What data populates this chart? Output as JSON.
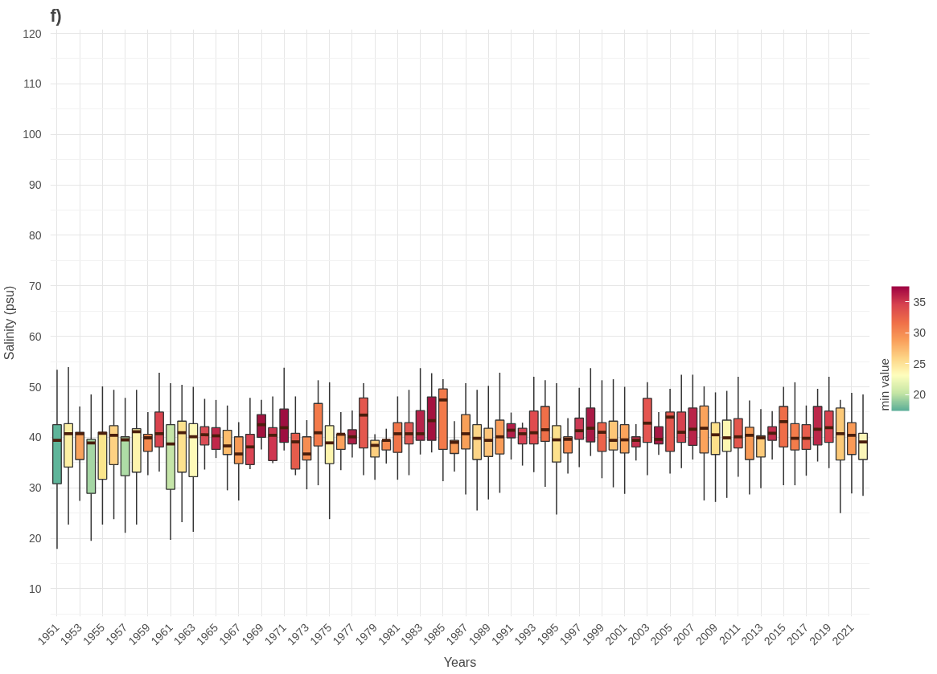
{
  "chart_data": {
    "type": "box",
    "title": "f)",
    "xlabel": "Years",
    "ylabel": "Salinity (psu)",
    "clabel": "min value",
    "categories": [
      "1951",
      null,
      "1953",
      null,
      "1955",
      null,
      "1957",
      null,
      "1959",
      null,
      "1961",
      null,
      "1963",
      null,
      "1965",
      null,
      "1967",
      null,
      "1969",
      null,
      "1971",
      null,
      "1973",
      null,
      "1975",
      null,
      "1977",
      null,
      "1979",
      null,
      "1981",
      null,
      "1983",
      null,
      "1985",
      null,
      "1987",
      null,
      "1989",
      null,
      "1991",
      null,
      "1993",
      null,
      "1995",
      null,
      "1997",
      null,
      "1999",
      null,
      "2001",
      null,
      "2003",
      null,
      "2005",
      null,
      "2007",
      null,
      "2009",
      null,
      "2011",
      null,
      "2013",
      null,
      "2015",
      null,
      "2017",
      null,
      "2019",
      null,
      "2021",
      null
    ],
    "ylim": [
      4.5,
      120.8
    ],
    "yticks": [
      10,
      20,
      30,
      40,
      50,
      60,
      70,
      80,
      90,
      100,
      110,
      120
    ],
    "grid": true,
    "clim": [
      17.4,
      37.5
    ],
    "cticks": [
      20,
      25,
      30,
      35
    ],
    "boxes": [
      {
        "low": 17.9,
        "q1": 30.8,
        "median": 39.4,
        "q3": 42.5,
        "high": 53.4
      },
      {
        "low": 22.7,
        "q1": 34.1,
        "median": 40.7,
        "q3": 42.7,
        "high": 53.9
      },
      {
        "low": 27.4,
        "q1": 35.6,
        "median": 40.7,
        "q3": 41.0,
        "high": 46.1
      },
      {
        "low": 19.5,
        "q1": 28.9,
        "median": 38.9,
        "q3": 39.6,
        "high": 48.5
      },
      {
        "low": 22.7,
        "q1": 31.7,
        "median": 40.8,
        "q3": 41.0,
        "high": 50.1
      },
      {
        "low": 23.8,
        "q1": 34.6,
        "median": 40.4,
        "q3": 42.3,
        "high": 49.4
      },
      {
        "low": 21.1,
        "q1": 32.4,
        "median": 39.5,
        "q3": 40.1,
        "high": 47.8
      },
      {
        "low": 22.7,
        "q1": 33.1,
        "median": 41.1,
        "q3": 41.7,
        "high": 49.4
      },
      {
        "low": 32.5,
        "q1": 37.2,
        "median": 39.9,
        "q3": 40.6,
        "high": 45.0
      },
      {
        "low": 33.2,
        "q1": 38.1,
        "median": 40.7,
        "q3": 45.0,
        "high": 52.8
      },
      {
        "low": 19.7,
        "q1": 29.7,
        "median": 38.7,
        "q3": 42.5,
        "high": 50.7
      },
      {
        "low": 23.2,
        "q1": 33.1,
        "median": 40.9,
        "q3": 43.2,
        "high": 50.4
      },
      {
        "low": 21.3,
        "q1": 32.2,
        "median": 40.1,
        "q3": 42.7,
        "high": 50.0
      },
      {
        "low": 33.6,
        "q1": 38.5,
        "median": 40.5,
        "q3": 42.1,
        "high": 47.6
      },
      {
        "low": 35.9,
        "q1": 37.6,
        "median": 40.3,
        "q3": 41.9,
        "high": 47.4
      },
      {
        "low": 29.5,
        "q1": 36.6,
        "median": 38.3,
        "q3": 41.4,
        "high": 46.3
      },
      {
        "low": 27.5,
        "q1": 34.8,
        "median": 36.7,
        "q3": 40.1,
        "high": 43.0
      },
      {
        "low": 33.7,
        "q1": 34.6,
        "median": 38.1,
        "q3": 40.6,
        "high": 47.8
      },
      {
        "low": 37.6,
        "q1": 40.0,
        "median": 42.5,
        "q3": 44.5,
        "high": 47.4
      },
      {
        "low": 34.9,
        "q1": 35.4,
        "median": 40.4,
        "q3": 41.9,
        "high": 48.1
      },
      {
        "low": 37.4,
        "q1": 39.0,
        "median": 41.9,
        "q3": 45.6,
        "high": 53.8
      },
      {
        "low": 32.5,
        "q1": 33.7,
        "median": 39.1,
        "q3": 40.8,
        "high": 48.1
      },
      {
        "low": 29.7,
        "q1": 35.5,
        "median": 36.7,
        "q3": 40.1,
        "high": 43.4
      },
      {
        "low": 30.5,
        "q1": 38.3,
        "median": 40.9,
        "q3": 46.7,
        "high": 51.3
      },
      {
        "low": 23.8,
        "q1": 34.8,
        "median": 38.9,
        "q3": 42.3,
        "high": 50.9
      },
      {
        "low": 33.5,
        "q1": 37.6,
        "median": 40.6,
        "q3": 40.6,
        "high": 45.0
      },
      {
        "low": 36.0,
        "q1": 38.7,
        "median": 40.1,
        "q3": 41.5,
        "high": 45.3
      },
      {
        "low": 32.5,
        "q1": 37.9,
        "median": 44.4,
        "q3": 47.8,
        "high": 50.7
      },
      {
        "low": 31.6,
        "q1": 36.1,
        "median": 38.4,
        "q3": 39.4,
        "high": 40.6
      },
      {
        "low": 34.8,
        "q1": 37.5,
        "median": 39.4,
        "q3": 39.4,
        "high": 41.7
      },
      {
        "low": 31.6,
        "q1": 37.0,
        "median": 40.7,
        "q3": 42.9,
        "high": 48.1
      },
      {
        "low": 32.5,
        "q1": 38.7,
        "median": 40.7,
        "q3": 42.9,
        "high": 49.4
      },
      {
        "low": 36.6,
        "q1": 39.4,
        "median": 40.7,
        "q3": 45.3,
        "high": 53.7
      },
      {
        "low": 37.0,
        "q1": 39.4,
        "median": 43.3,
        "q3": 48.0,
        "high": 52.7
      },
      {
        "low": 31.3,
        "q1": 37.6,
        "median": 47.4,
        "q3": 49.6,
        "high": 51.5
      },
      {
        "low": 33.2,
        "q1": 36.8,
        "median": 39.0,
        "q3": 39.4,
        "high": 43.2
      },
      {
        "low": 28.7,
        "q1": 37.7,
        "median": 40.7,
        "q3": 44.5,
        "high": 50.7
      },
      {
        "low": 25.5,
        "q1": 35.6,
        "median": 39.8,
        "q3": 42.5,
        "high": 49.4
      },
      {
        "low": 27.7,
        "q1": 36.2,
        "median": 39.4,
        "q3": 41.8,
        "high": 50.2
      },
      {
        "low": 29.0,
        "q1": 36.7,
        "median": 40.1,
        "q3": 43.4,
        "high": 52.8
      },
      {
        "low": 35.6,
        "q1": 39.9,
        "median": 41.4,
        "q3": 42.7,
        "high": 44.9
      },
      {
        "low": 34.4,
        "q1": 38.7,
        "median": 40.7,
        "q3": 41.8,
        "high": 42.9
      },
      {
        "low": 33.1,
        "q1": 38.7,
        "median": 40.9,
        "q3": 45.2,
        "high": 52.0
      },
      {
        "low": 30.2,
        "q1": 39.2,
        "median": 41.5,
        "q3": 46.1,
        "high": 51.3
      },
      {
        "low": 24.7,
        "q1": 35.1,
        "median": 39.5,
        "q3": 42.3,
        "high": 50.7
      },
      {
        "low": 32.8,
        "q1": 36.9,
        "median": 39.6,
        "q3": 40.1,
        "high": 43.8
      },
      {
        "low": 34.1,
        "q1": 39.6,
        "median": 41.3,
        "q3": 43.8,
        "high": 49.8
      },
      {
        "low": 36.3,
        "q1": 39.1,
        "median": 41.8,
        "q3": 45.8,
        "high": 53.7
      },
      {
        "low": 31.9,
        "q1": 37.2,
        "median": 41.0,
        "q3": 42.9,
        "high": 51.3
      },
      {
        "low": 30.1,
        "q1": 37.5,
        "median": 39.4,
        "q3": 43.2,
        "high": 51.5
      },
      {
        "low": 28.8,
        "q1": 36.9,
        "median": 39.5,
        "q3": 42.5,
        "high": 50.0
      },
      {
        "low": 35.4,
        "q1": 38.1,
        "median": 39.4,
        "q3": 40.1,
        "high": 42.6
      },
      {
        "low": 32.5,
        "q1": 39.0,
        "median": 42.8,
        "q3": 47.7,
        "high": 50.9
      },
      {
        "low": 36.5,
        "q1": 38.7,
        "median": 39.6,
        "q3": 42.1,
        "high": 45.0
      },
      {
        "low": 32.8,
        "q1": 37.2,
        "median": 44.0,
        "q3": 45.0,
        "high": 49.6
      },
      {
        "low": 33.9,
        "q1": 39.0,
        "median": 41.0,
        "q3": 45.0,
        "high": 52.4
      },
      {
        "low": 35.6,
        "q1": 38.4,
        "median": 41.6,
        "q3": 45.8,
        "high": 52.4
      },
      {
        "low": 27.5,
        "q1": 36.9,
        "median": 41.8,
        "q3": 46.2,
        "high": 50.1
      },
      {
        "low": 27.2,
        "q1": 36.6,
        "median": 40.5,
        "q3": 42.9,
        "high": 48.9
      },
      {
        "low": 28.0,
        "q1": 37.2,
        "median": 39.9,
        "q3": 43.4,
        "high": 49.2
      },
      {
        "low": 32.2,
        "q1": 37.9,
        "median": 40.1,
        "q3": 43.7,
        "high": 52.0
      },
      {
        "low": 28.7,
        "q1": 35.6,
        "median": 40.4,
        "q3": 42.0,
        "high": 47.3
      },
      {
        "low": 29.9,
        "q1": 36.1,
        "median": 39.9,
        "q3": 40.3,
        "high": 45.6
      },
      {
        "low": 35.6,
        "q1": 39.4,
        "median": 40.8,
        "q3": 42.1,
        "high": 45.2
      },
      {
        "low": 30.5,
        "q1": 38.1,
        "median": 43.1,
        "q3": 46.1,
        "high": 50.0
      },
      {
        "low": 30.5,
        "q1": 37.5,
        "median": 39.8,
        "q3": 42.7,
        "high": 50.9
      },
      {
        "low": 32.4,
        "q1": 37.6,
        "median": 39.8,
        "q3": 42.5,
        "high": 46.3
      },
      {
        "low": 35.2,
        "q1": 38.5,
        "median": 41.6,
        "q3": 46.1,
        "high": 49.6
      },
      {
        "low": 33.9,
        "q1": 39.0,
        "median": 41.9,
        "q3": 45.2,
        "high": 52.0
      },
      {
        "low": 25.0,
        "q1": 35.5,
        "median": 40.7,
        "q3": 45.8,
        "high": 47.4
      },
      {
        "low": 28.9,
        "q1": 36.6,
        "median": 40.4,
        "q3": 42.9,
        "high": 48.8
      },
      {
        "low": 28.4,
        "q1": 35.6,
        "median": 39.1,
        "q3": 40.8,
        "high": 48.5
      }
    ],
    "colors": [
      "#5fb59a",
      "#fdf0a4",
      "#f9a35c",
      "#a5d6a4",
      "#fae58c",
      "#fed283",
      "#aedca6",
      "#fdf4ad",
      "#f58a4f",
      "#d9434e",
      "#c5e5a8",
      "#fde28e",
      "#fefab8",
      "#db4d55",
      "#c1284a",
      "#fdbd6c",
      "#f79a55",
      "#db4453",
      "#a3123f",
      "#cf3650",
      "#9e0f41",
      "#e55c4c",
      "#f68d52",
      "#f37a4a",
      "#fdf5ad",
      "#fba15c",
      "#ac1f47",
      "#e4574e",
      "#fdcf7e",
      "#f68b50",
      "#f07549",
      "#e05852",
      "#b7234a",
      "#a3123f",
      "#f37a4a",
      "#f89a55",
      "#f9a058",
      "#fdd587",
      "#fdc57a",
      "#f99c58",
      "#b31f48",
      "#d84456",
      "#e04b4f",
      "#ef6f48",
      "#fde18c",
      "#f78b50",
      "#cc3a55",
      "#a91a45",
      "#ec634b",
      "#fdc677",
      "#fba35b",
      "#c52e4d",
      "#e55550",
      "#a91743",
      "#e4574d",
      "#d6424f",
      "#b92349",
      "#fba35c",
      "#fde08a",
      "#fdf7b2",
      "#e4574d",
      "#f89a55",
      "#fdcb7a",
      "#c72f4e",
      "#ef6d48",
      "#f47c4b",
      "#e85e4d",
      "#bc274a",
      "#d9424f",
      "#fcc977",
      "#f99a56",
      "#fbf6b8"
    ]
  }
}
